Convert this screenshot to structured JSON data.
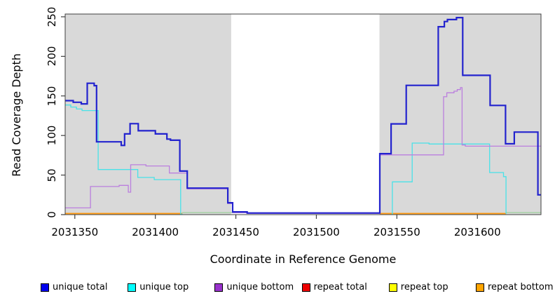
{
  "figure": {
    "kind": "read coverage depth step plot",
    "background": "#ffffff",
    "box_color": "#3f3f3f",
    "tick_color": "#3f3f3f",
    "text_color": "#000000"
  },
  "legend": {
    "items": [
      {
        "label": "unique total",
        "color": "#0000ee"
      },
      {
        "label": "unique top",
        "color": "#00ffff"
      },
      {
        "label": "unique bottom",
        "color": "#9932cc"
      },
      {
        "label": "repeat total",
        "color": "#ee0000"
      },
      {
        "label": "repeat top",
        "color": "#ffff00"
      },
      {
        "label": "repeat bottom",
        "color": "#ffa500"
      }
    ]
  },
  "chart_data": {
    "type": "line",
    "step": true,
    "title": "",
    "xlabel": "Coordinate in Reference Genome",
    "ylabel": "Read Coverage Depth",
    "xlim": [
      2031344.0,
      2031639.5
    ],
    "ylim": [
      0,
      253.5
    ],
    "grid": false,
    "x_ticks": [
      {
        "v": 2031350,
        "label": "2031350"
      },
      {
        "v": 2031400,
        "label": "2031400"
      },
      {
        "v": 2031450,
        "label": "2031450"
      },
      {
        "v": 2031500,
        "label": "2031500"
      },
      {
        "v": 2031550,
        "label": "2031550"
      },
      {
        "v": 2031600,
        "label": "2031600"
      }
    ],
    "y_ticks": [
      {
        "v": 0,
        "label": "0"
      },
      {
        "v": 50,
        "label": "50"
      },
      {
        "v": 100,
        "label": "100"
      },
      {
        "v": 150,
        "label": "150"
      },
      {
        "v": 200,
        "label": "200"
      },
      {
        "v": 250,
        "label": "250"
      }
    ],
    "shaded_regions": [
      {
        "x0": 2031344.0,
        "x1": 2031447.1,
        "color": "#d9d9d9"
      },
      {
        "x0": 2031539.2,
        "x1": 2031639.5,
        "color": "#d9d9d9"
      }
    ],
    "series": [
      {
        "name": "repeat total",
        "color": "#ee0000",
        "width": 1.4,
        "segments": [
          {
            "x_end": 2031416.7,
            "points": [
              [
                2031344.0,
                1.4
              ]
            ]
          },
          {
            "x_end": 2031617.8,
            "points": [
              [
                2031539.4,
                1.4
              ]
            ]
          }
        ]
      },
      {
        "name": "repeat top",
        "color": "#ffff00",
        "width": 1.4,
        "segments": [
          {
            "x_end": 2031416.7,
            "points": [
              [
                2031344.0,
                1.4
              ]
            ]
          },
          {
            "x_end": 2031617.8,
            "points": [
              [
                2031539.4,
                1.4
              ]
            ]
          }
        ]
      },
      {
        "name": "repeat bottom",
        "color": "#ff9912",
        "width": 1.6,
        "segments": [
          {
            "x_end": 2031416.7,
            "points": [
              [
                2031344.0,
                1.4
              ]
            ]
          },
          {
            "x_end": 2031617.8,
            "points": [
              [
                2031539.4,
                1.4
              ]
            ]
          }
        ]
      },
      {
        "name": "baseline-overlap",
        "color": "#9ccf9c",
        "width": 1.3,
        "segments": [
          {
            "x_end": 2031447.8,
            "points": [
              [
                2031416.7,
                2.6
              ]
            ]
          },
          {
            "x_end": 2031639.5,
            "points": [
              [
                2031617.8,
                2.6
              ]
            ]
          }
        ]
      },
      {
        "name": "unique top",
        "color": "#49e2e8",
        "width": 1.3,
        "segments": [
          {
            "x_end": 2031416.9,
            "points": [
              [
                2031344.0,
                138.5
              ],
              [
                2031347.5,
                136
              ],
              [
                2031351,
                133.5
              ],
              [
                2031354.5,
                131.5
              ],
              [
                2031364.5,
                57
              ],
              [
                2031389.1,
                47
              ],
              [
                2031399.3,
                44.2
              ],
              [
                2031415.7,
                0.6
              ]
            ]
          },
          {
            "x_end": 2031618.0,
            "points": [
              [
                2031546.8,
                0.6
              ],
              [
                2031547.2,
                41.4
              ],
              [
                2031559.5,
                90.4
              ],
              [
                2031570,
                89.3
              ],
              [
                2031607.6,
                53.2
              ],
              [
                2031616.2,
                48
              ],
              [
                2031617.8,
                1.6
              ]
            ]
          }
        ]
      },
      {
        "name": "unique bottom",
        "color": "#bb7fde",
        "width": 1.3,
        "segments": [
          {
            "x_end": 2031639.5,
            "points": [
              [
                2031344.0,
                8.5
              ],
              [
                2031359.7,
                35.5
              ],
              [
                2031377.5,
                37
              ],
              [
                2031383.2,
                28.4
              ],
              [
                2031384.7,
                63
              ],
              [
                2031394.2,
                61.5
              ],
              [
                2031408.7,
                52.6
              ],
              [
                2031419.8,
                32.5
              ],
              [
                2031445,
                14
              ],
              [
                2031448,
                2.5
              ],
              [
                2031457,
                1.4
              ],
              [
                2031539.4,
                75.5
              ],
              [
                2031579,
                149
              ],
              [
                2031581,
                154
              ],
              [
                2031585.5,
                156
              ],
              [
                2031587.5,
                158
              ],
              [
                2031589.5,
                160.5
              ],
              [
                2031590.5,
                88
              ],
              [
                2031592.5,
                86.5
              ]
            ]
          }
        ]
      },
      {
        "name": "unique total",
        "color": "#2323ce",
        "width": 2.2,
        "segments": [
          {
            "x_end": 2031639.5,
            "points": [
              [
                2031344.0,
                144
              ],
              [
                2031349,
                142
              ],
              [
                2031354,
                140
              ],
              [
                2031357.7,
                166
              ],
              [
                2031362,
                163
              ],
              [
                2031363.5,
                92
              ],
              [
                2031378.8,
                87.5
              ],
              [
                2031380.9,
                102
              ],
              [
                2031384.3,
                115
              ],
              [
                2031389.4,
                106
              ],
              [
                2031400,
                102
              ],
              [
                2031407.2,
                95.5
              ],
              [
                2031409.4,
                94
              ],
              [
                2031415.2,
                55
              ],
              [
                2031419.8,
                33.5
              ],
              [
                2031445,
                15
              ],
              [
                2031448,
                3.5
              ],
              [
                2031457,
                2.0
              ],
              [
                2031539.4,
                77
              ],
              [
                2031546.4,
                114.7
              ],
              [
                2031555.8,
                163.4
              ],
              [
                2031575.7,
                237.5
              ],
              [
                2031579.5,
                244
              ],
              [
                2031581.4,
                246.5
              ],
              [
                2031587,
                249
              ],
              [
                2031590.9,
                176
              ],
              [
                2031607.9,
                138
              ],
              [
                2031617.5,
                89.5
              ],
              [
                2031622.9,
                104.3
              ],
              [
                2031637.6,
                25
              ]
            ]
          }
        ]
      }
    ]
  }
}
